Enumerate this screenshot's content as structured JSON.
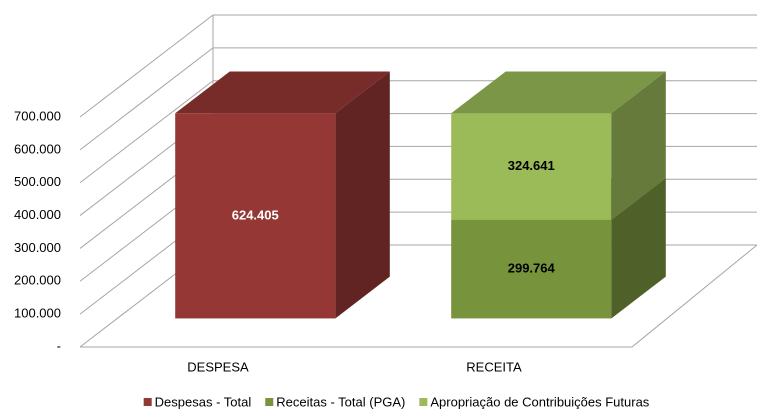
{
  "chart_data": {
    "type": "bar3d-stacked",
    "categories": [
      "DESPESA",
      "RECEITA"
    ],
    "series": [
      {
        "name": "Despesas - Total",
        "color": "#953735",
        "values": [
          624405,
          null
        ],
        "value_labels": [
          "624.405",
          null
        ]
      },
      {
        "name": "Receitas - Total (PGA)",
        "color": "#77933c",
        "values": [
          null,
          299764
        ],
        "value_labels": [
          null,
          "299.764"
        ]
      },
      {
        "name": "Apropriação de Contribuições Futuras",
        "color": "#9bbb59",
        "values": [
          null,
          324641
        ],
        "value_labels": [
          null,
          "324.641"
        ]
      }
    ],
    "ylim": [
      0,
      700000
    ],
    "yticks": [
      {
        "value": 0,
        "label": "-"
      },
      {
        "value": 100000,
        "label": "100.000"
      },
      {
        "value": 200000,
        "label": "200.000"
      },
      {
        "value": 300000,
        "label": "300.000"
      },
      {
        "value": 400000,
        "label": "400.000"
      },
      {
        "value": 500000,
        "label": "500.000"
      },
      {
        "value": 600000,
        "label": "600.000"
      },
      {
        "value": 700000,
        "label": "700.000"
      }
    ],
    "grid": true,
    "legend": "bottom"
  }
}
